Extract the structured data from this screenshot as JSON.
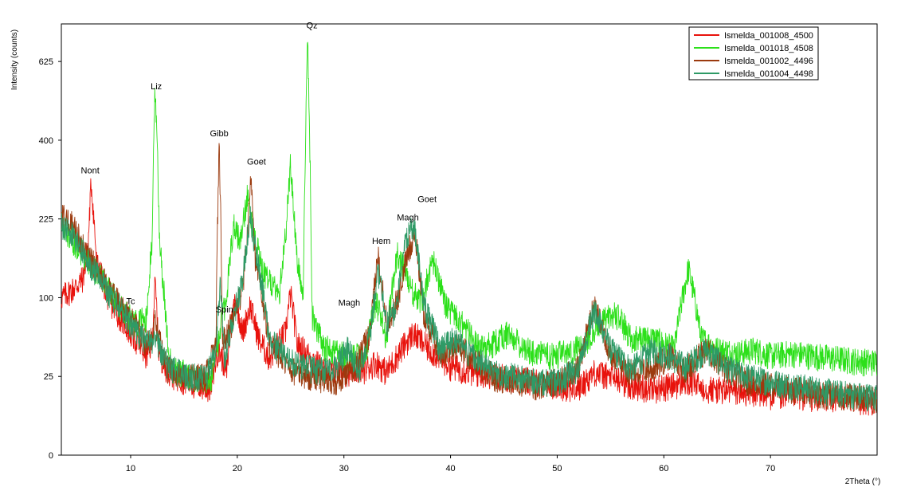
{
  "chart_data": {
    "type": "line",
    "xlabel": "2Theta (°)",
    "ylabel": "Intensity (counts)",
    "y_scale": "sqrt",
    "xlim": [
      3.5,
      80
    ],
    "ylim": [
      0,
      750
    ],
    "x_ticks": [
      10,
      20,
      30,
      40,
      50,
      60,
      70
    ],
    "y_ticks": [
      0,
      25,
      100,
      225,
      400,
      625
    ],
    "grid": false,
    "legend_position": "top-right",
    "series": [
      {
        "name": "Ismelda_001008_4500",
        "color": "#e8120c",
        "x": [
          3.5,
          4.5,
          5.5,
          6.0,
          6.3,
          6.8,
          8,
          10,
          11.5,
          12.0,
          12.3,
          12.6,
          13.2,
          14,
          16,
          17.5,
          18.2,
          18.5,
          19,
          19.8,
          20.5,
          21.2,
          22,
          23,
          24.5,
          25.0,
          25.6,
          27,
          28,
          30,
          32,
          33.0,
          34,
          35,
          36.5,
          38,
          40,
          42,
          45,
          48,
          50,
          52,
          53.5,
          55,
          57,
          59,
          61,
          62.5,
          64,
          66,
          68,
          70,
          72,
          74,
          76,
          78,
          80
        ],
        "y": [
          100,
          110,
          125,
          170,
          300,
          150,
          95,
          60,
          40,
          50,
          120,
          45,
          32,
          26,
          20,
          18,
          45,
          40,
          28,
          100,
          60,
          90,
          55,
          38,
          60,
          105,
          50,
          38,
          30,
          28,
          30,
          35,
          28,
          40,
          60,
          45,
          32,
          28,
          25,
          22,
          20,
          18,
          28,
          25,
          20,
          18,
          20,
          22,
          18,
          17,
          16,
          15,
          15,
          14,
          14,
          13,
          12
        ]
      },
      {
        "name": "Ismelda_001018_4508",
        "color": "#2ce01a",
        "x": [
          3.5,
          5,
          7,
          9,
          10.5,
          11.5,
          12.0,
          12.3,
          12.7,
          13.5,
          14,
          16,
          17.5,
          18,
          19,
          19.7,
          20.3,
          21,
          21.5,
          22.5,
          24,
          24.6,
          25.0,
          25.6,
          26.2,
          26.6,
          27.0,
          28,
          30,
          32,
          33.0,
          34,
          35.0,
          35.6,
          36.5,
          37.3,
          38.3,
          39.5,
          41,
          43,
          45.5,
          47,
          49,
          51,
          52.5,
          54.5,
          55.5,
          57,
          59,
          61,
          62.3,
          63.5,
          65,
          67,
          68.5,
          70,
          72,
          74,
          76,
          78,
          80
        ],
        "y": [
          210,
          175,
          130,
          90,
          70,
          75,
          180,
          560,
          180,
          45,
          30,
          25,
          22,
          40,
          100,
          220,
          180,
          280,
          200,
          130,
          110,
          210,
          340,
          150,
          100,
          700,
          80,
          48,
          40,
          40,
          95,
          55,
          165,
          140,
          105,
          95,
          155,
          90,
          70,
          45,
          60,
          45,
          40,
          42,
          50,
          75,
          80,
          55,
          55,
          45,
          140,
          55,
          45,
          42,
          45,
          40,
          42,
          40,
          38,
          36,
          35
        ]
      },
      {
        "name": "Ismelda_001002_4496",
        "color": "#9b3a0e",
        "x": [
          3.5,
          4.5,
          6,
          8,
          10,
          11.5,
          12.0,
          12.3,
          12.6,
          13.5,
          15,
          17,
          18.0,
          18.3,
          18.6,
          19.5,
          20.5,
          21.0,
          21.3,
          21.7,
          23,
          25,
          27,
          29,
          31,
          32.5,
          33.2,
          34,
          35.0,
          35.8,
          36.6,
          37.5,
          39,
          40.5,
          42,
          44,
          46,
          48,
          50,
          52,
          53.5,
          55,
          57,
          59,
          60.5,
          62,
          64,
          66,
          68,
          70,
          72,
          74,
          76,
          78,
          80
        ],
        "y": [
          230,
          215,
          160,
          110,
          75,
          50,
          55,
          75,
          55,
          30,
          25,
          25,
          50,
          390,
          50,
          70,
          110,
          200,
          320,
          150,
          50,
          30,
          25,
          22,
          30,
          60,
          160,
          70,
          95,
          150,
          200,
          80,
          40,
          50,
          38,
          25,
          22,
          20,
          22,
          30,
          90,
          40,
          28,
          30,
          40,
          30,
          45,
          28,
          22,
          20,
          18,
          16,
          15,
          14,
          12
        ]
      },
      {
        "name": "Ismelda_001004_4498",
        "color": "#2e9a66",
        "x": [
          3.5,
          4.5,
          6,
          8,
          10,
          11.5,
          12.3,
          13.5,
          15,
          17,
          18.0,
          18.4,
          18.8,
          19.5,
          20.5,
          21.2,
          21.8,
          23,
          25,
          27,
          29,
          30.3,
          31.5,
          32.5,
          33.2,
          34,
          35.0,
          35.7,
          36.6,
          37.5,
          39,
          40.5,
          42,
          44,
          46,
          48,
          50,
          52,
          53.5,
          55,
          57,
          59,
          60.5,
          62,
          64,
          66,
          68,
          70,
          72,
          74,
          76,
          78,
          80
        ],
        "y": [
          215,
          200,
          150,
          105,
          70,
          50,
          55,
          32,
          26,
          24,
          40,
          120,
          35,
          70,
          120,
          230,
          160,
          55,
          35,
          30,
          28,
          45,
          30,
          60,
          135,
          70,
          90,
          190,
          210,
          90,
          45,
          55,
          40,
          28,
          25,
          22,
          22,
          30,
          85,
          45,
          30,
          45,
          40,
          32,
          45,
          30,
          25,
          22,
          20,
          18,
          16,
          15,
          14
        ]
      }
    ],
    "annotations": [
      {
        "text": "Nont",
        "x": 6.2,
        "y": 320
      },
      {
        "text": "Tc",
        "x": 10.0,
        "y": 92
      },
      {
        "text": "Liz",
        "x": 12.4,
        "y": 540
      },
      {
        "text": "Gibb",
        "x": 18.3,
        "y": 410
      },
      {
        "text": "Spin",
        "x": 18.8,
        "y": 82
      },
      {
        "text": "Goet",
        "x": 21.8,
        "y": 340
      },
      {
        "text": "Qz",
        "x": 27.0,
        "y": 735
      },
      {
        "text": "Magh",
        "x": 30.5,
        "y": 90
      },
      {
        "text": "Hem",
        "x": 33.5,
        "y": 180
      },
      {
        "text": "Magh",
        "x": 36.0,
        "y": 222
      },
      {
        "text": "Goet",
        "x": 37.8,
        "y": 258
      }
    ]
  }
}
